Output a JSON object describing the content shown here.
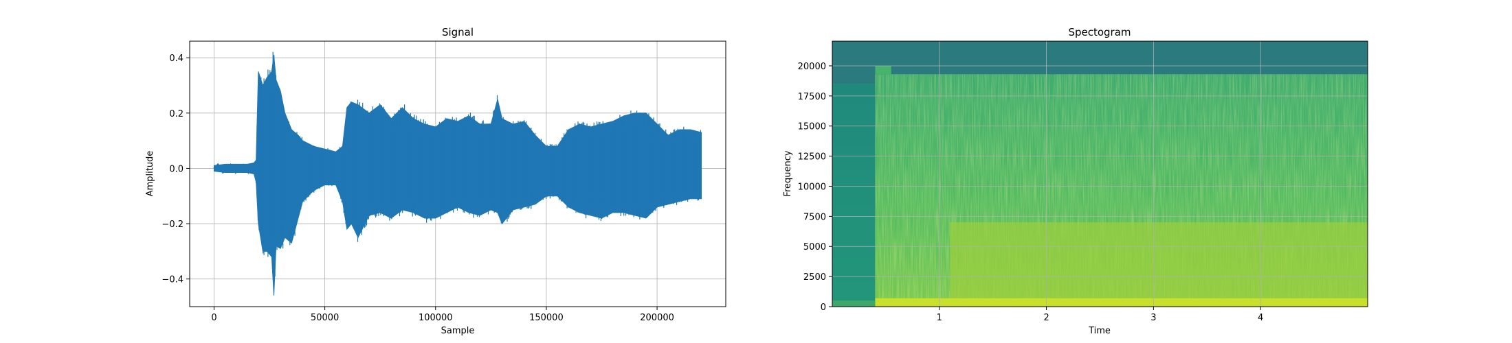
{
  "chart_data": [
    {
      "type": "line",
      "title": "Signal",
      "xlabel": "Sample",
      "ylabel": "Amplitude",
      "xlim": [
        -11000,
        231000
      ],
      "ylim": [
        -0.5,
        0.46
      ],
      "xticks": [
        0,
        50000,
        100000,
        150000,
        200000
      ],
      "xtick_labels": [
        "0",
        "50000",
        "100000",
        "150000",
        "200000"
      ],
      "yticks": [
        -0.4,
        -0.2,
        0.0,
        0.2,
        0.4
      ],
      "ytick_labels": [
        "−0.4",
        "−0.2",
        "0.0",
        "0.2",
        "0.4"
      ],
      "grid": true,
      "line_color": "#1f77b4",
      "envelope": {
        "x": [
          0,
          5000,
          10000,
          15000,
          18000,
          19000,
          20000,
          22000,
          24000,
          26000,
          27000,
          28000,
          30000,
          32000,
          35000,
          38000,
          40000,
          45000,
          50000,
          55000,
          58000,
          60000,
          62000,
          65000,
          70000,
          75000,
          80000,
          85000,
          90000,
          95000,
          100000,
          105000,
          110000,
          115000,
          120000,
          125000,
          128000,
          130000,
          135000,
          140000,
          145000,
          150000,
          155000,
          160000,
          165000,
          170000,
          175000,
          180000,
          185000,
          190000,
          195000,
          200000,
          205000,
          210000,
          215000,
          220000
        ],
        "max": [
          0.01,
          0.015,
          0.015,
          0.015,
          0.02,
          0.03,
          0.35,
          0.3,
          0.33,
          0.35,
          0.41,
          0.32,
          0.28,
          0.2,
          0.14,
          0.12,
          0.1,
          0.08,
          0.07,
          0.06,
          0.08,
          0.22,
          0.24,
          0.23,
          0.2,
          0.23,
          0.18,
          0.22,
          0.18,
          0.16,
          0.15,
          0.18,
          0.17,
          0.19,
          0.16,
          0.16,
          0.25,
          0.18,
          0.16,
          0.17,
          0.12,
          0.08,
          0.08,
          0.14,
          0.16,
          0.15,
          0.16,
          0.17,
          0.19,
          0.2,
          0.2,
          0.16,
          0.12,
          0.14,
          0.14,
          0.13
        ],
        "min": [
          -0.01,
          -0.015,
          -0.015,
          -0.015,
          -0.02,
          -0.05,
          -0.2,
          -0.3,
          -0.3,
          -0.32,
          -0.46,
          -0.28,
          -0.29,
          -0.25,
          -0.27,
          -0.18,
          -0.12,
          -0.08,
          -0.06,
          -0.06,
          -0.12,
          -0.22,
          -0.2,
          -0.25,
          -0.17,
          -0.16,
          -0.18,
          -0.15,
          -0.16,
          -0.18,
          -0.18,
          -0.16,
          -0.14,
          -0.16,
          -0.17,
          -0.15,
          -0.16,
          -0.2,
          -0.15,
          -0.14,
          -0.13,
          -0.1,
          -0.1,
          -0.14,
          -0.16,
          -0.17,
          -0.18,
          -0.16,
          -0.16,
          -0.17,
          -0.18,
          -0.14,
          -0.13,
          -0.12,
          -0.11,
          -0.11
        ]
      }
    },
    {
      "type": "heatmap",
      "title": "Spectogram",
      "xlabel": "Time",
      "ylabel": "Frequency",
      "xlim": [
        0,
        5.0
      ],
      "ylim": [
        0,
        22050
      ],
      "xticks": [
        1,
        2,
        3,
        4
      ],
      "xtick_labels": [
        "1",
        "2",
        "3",
        "4"
      ],
      "yticks": [
        0,
        2500,
        5000,
        7500,
        10000,
        12500,
        15000,
        17500,
        20000
      ],
      "ytick_labels": [
        "0",
        "2500",
        "5000",
        "7500",
        "10000",
        "12500",
        "15000",
        "17500",
        "20000"
      ],
      "grid": true,
      "colormap": "viridis",
      "colors": {
        "top_band": "#2a7a7e",
        "left_region": "#1e8a7a",
        "body": "#46b46c",
        "bright_low": "#9ccf3c",
        "bright_line": "#c8e02c"
      },
      "onset_time": 0.4,
      "cutoff_freq_high": 20000,
      "cutoff_freq_body": 19300
    }
  ]
}
